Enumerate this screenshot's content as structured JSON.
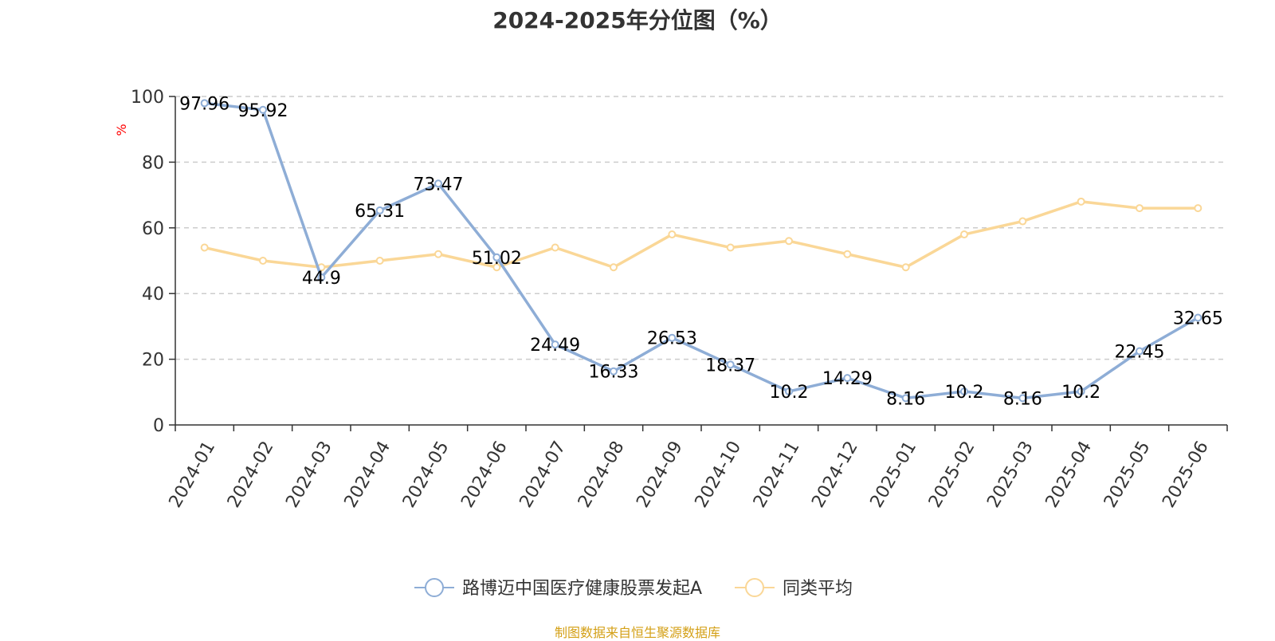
{
  "chart_data": {
    "type": "line",
    "title": "2024-2025年分位图（%）",
    "ylabel": "%",
    "ylim": [
      0,
      100
    ],
    "yticks": [
      0,
      20,
      40,
      60,
      80,
      100
    ],
    "grid": true,
    "legend_position": "bottom",
    "categories": [
      "2024-01",
      "2024-02",
      "2024-03",
      "2024-04",
      "2024-05",
      "2024-06",
      "2024-07",
      "2024-08",
      "2024-09",
      "2024-10",
      "2024-11",
      "2024-12",
      "2025-01",
      "2025-02",
      "2025-03",
      "2025-04",
      "2025-05",
      "2025-06"
    ],
    "series": [
      {
        "name": "路博迈中国医疗健康股票发起A",
        "color": "#8eadd6",
        "values": [
          97.96,
          95.92,
          44.9,
          65.31,
          73.47,
          51.02,
          24.49,
          16.33,
          26.53,
          18.37,
          10.2,
          14.29,
          8.16,
          10.2,
          8.16,
          10.2,
          22.45,
          32.65
        ],
        "labels": [
          "97.96",
          "95.92",
          "44.9",
          "65.31",
          "73.47",
          "51.02",
          "24.49",
          "16.33",
          "26.53",
          "18.37",
          "10.2",
          "14.29",
          "8.16",
          "10.2",
          "8.16",
          "10.2",
          "22.45",
          "32.65"
        ]
      },
      {
        "name": "同类平均",
        "color": "#fad797",
        "values": [
          54,
          50,
          48,
          50,
          52,
          48,
          54,
          48,
          58,
          54,
          56,
          52,
          48,
          58,
          62,
          68,
          66,
          66
        ]
      }
    ]
  },
  "footer": {
    "source": "制图数据来自恒生聚源数据库"
  },
  "colors": {
    "axis": "#333333",
    "grid": "#cccccc",
    "unit_label": "#ff0000",
    "source_text": "#d4a017"
  }
}
